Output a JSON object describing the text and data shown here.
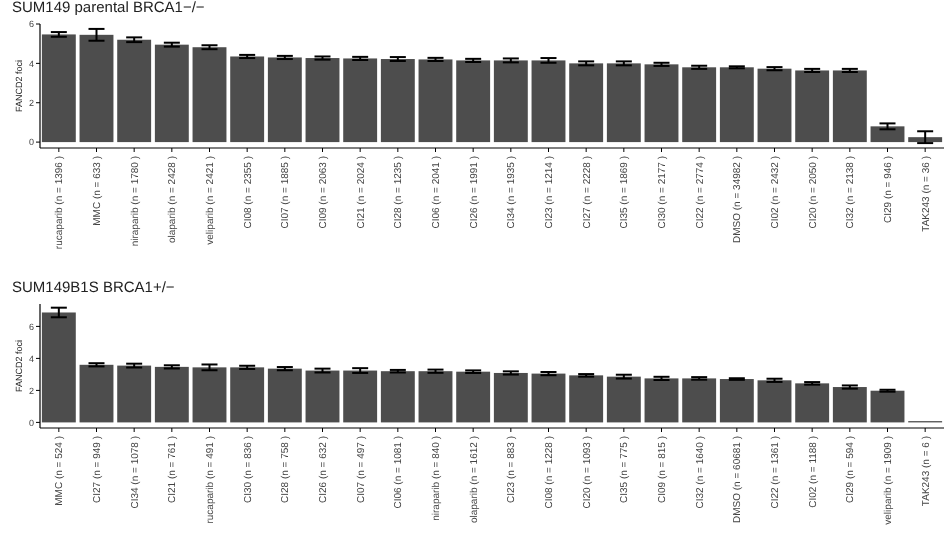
{
  "chart_data": [
    {
      "type": "bar",
      "title": "SUM149 parental BRCA1−/−",
      "ylabel": "FANCD2 foci",
      "categories": [
        "rucaparib (n = 1396 )",
        "MMC (n = 633 )",
        "niraparib (n = 1780 )",
        "olaparib (n = 2428 )",
        "veliparib (n = 2421 )",
        "CI08 (n = 2355 )",
        "CI07 (n = 1885 )",
        "CI09 (n = 2063 )",
        "CI21 (n = 2024 )",
        "CI28 (n = 1235 )",
        "CI06 (n = 2041 )",
        "CI26 (n = 1991 )",
        "CI34 (n = 1935 )",
        "CI23 (n = 1214 )",
        "CI27 (n = 2228 )",
        "CI35 (n = 1869 )",
        "CI30 (n = 2177 )",
        "CI22 (n = 2774 )",
        "DMSO (n = 34982 )",
        "CI02 (n = 2432 )",
        "CI20 (n = 2050 )",
        "CI32 (n = 2138 )",
        "CI29 (n = 946 )",
        "TAK243 (n = 36 )"
      ],
      "values": [
        5.47,
        5.45,
        5.2,
        4.95,
        4.82,
        4.35,
        4.3,
        4.27,
        4.25,
        4.22,
        4.2,
        4.15,
        4.15,
        4.15,
        4.0,
        4.0,
        3.95,
        3.8,
        3.8,
        3.73,
        3.64,
        3.64,
        0.8,
        0.25
      ],
      "errors": [
        0.12,
        0.3,
        0.12,
        0.1,
        0.1,
        0.08,
        0.08,
        0.08,
        0.08,
        0.1,
        0.08,
        0.08,
        0.1,
        0.12,
        0.1,
        0.1,
        0.08,
        0.08,
        0.05,
        0.08,
        0.08,
        0.08,
        0.15,
        0.3
      ],
      "color": "#4d4d4d",
      "ylim": [
        -0.3,
        6.0
      ],
      "yticks": [
        0,
        2,
        4,
        6
      ],
      "grid": false
    },
    {
      "type": "bar",
      "title": "SUM149B1S BRCA1+/−",
      "ylabel": "FANCD2 foci",
      "categories": [
        "MMC (n = 524 )",
        "CI27 (n = 949 )",
        "CI34 (n = 1078 )",
        "CI21 (n = 761 )",
        "rucaparib (n = 491 )",
        "CI30 (n = 836 )",
        "CI28 (n = 758 )",
        "CI26 (n = 632 )",
        "CI07 (n = 497 )",
        "CI06 (n = 1081 )",
        "niraparib (n = 840 )",
        "olaparib (n = 1612 )",
        "CI23 (n = 883 )",
        "CI08 (n = 1228 )",
        "CI20 (n = 1093 )",
        "CI35 (n = 775 )",
        "CI09 (n = 815 )",
        "CI32 (n = 1640 )",
        "DMSO (n = 60681 )",
        "CI22 (n = 1361 )",
        "CI02 (n = 1188 )",
        "CI29 (n = 594 )",
        "veliparib (n = 1909 )",
        "TAK243 (n = 6 )"
      ],
      "values": [
        6.87,
        3.6,
        3.55,
        3.47,
        3.44,
        3.44,
        3.36,
        3.24,
        3.24,
        3.2,
        3.2,
        3.17,
        3.09,
        3.05,
        2.94,
        2.86,
        2.75,
        2.75,
        2.71,
        2.63,
        2.44,
        2.21,
        1.98,
        0.08
      ],
      "errors": [
        0.3,
        0.1,
        0.12,
        0.1,
        0.18,
        0.1,
        0.1,
        0.12,
        0.15,
        0.08,
        0.1,
        0.08,
        0.1,
        0.1,
        0.08,
        0.12,
        0.1,
        0.08,
        0.05,
        0.1,
        0.08,
        0.1,
        0.06,
        null
      ],
      "color": "#4d4d4d",
      "ylim": [
        -0.35,
        7.4
      ],
      "yticks": [
        0,
        2,
        4,
        6
      ],
      "grid": false
    }
  ]
}
